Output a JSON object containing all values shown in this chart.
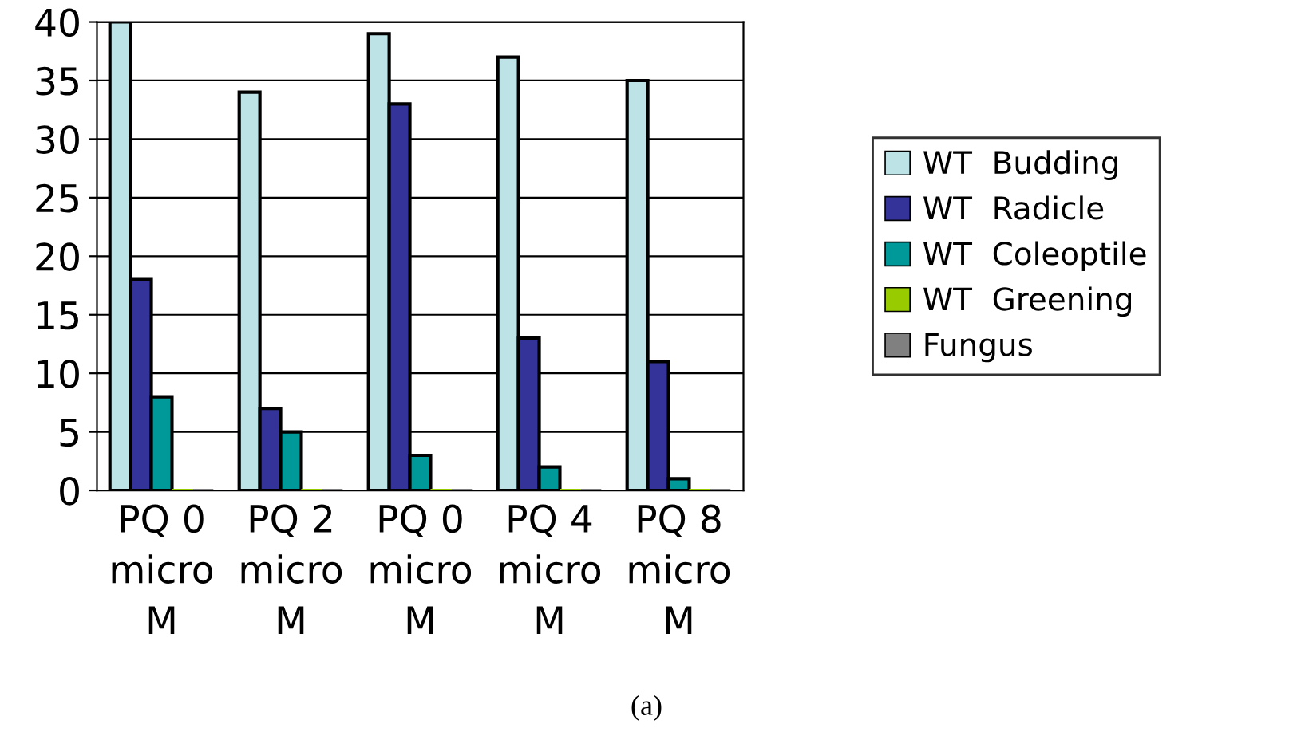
{
  "chart_data": {
    "type": "bar",
    "categories": [
      "PQ 0\nmicro\nM",
      "PQ 2\nmicro\nM",
      "PQ 0\nmicro\nM",
      "PQ 4\nmicro\nM",
      "PQ 8\nmicro\nM"
    ],
    "series": [
      {
        "name": "WT  Budding",
        "color": "#bde3e6",
        "values": [
          40,
          34,
          39,
          37,
          35
        ]
      },
      {
        "name": "WT  Radicle",
        "color": "#333399",
        "values": [
          18,
          7,
          33,
          13,
          11
        ]
      },
      {
        "name": "WT  Coleoptile",
        "color": "#009999",
        "values": [
          8,
          5,
          3,
          2,
          1
        ]
      },
      {
        "name": "WT  Greening",
        "color": "#99cc00",
        "values": [
          0,
          0,
          0,
          0,
          0
        ]
      },
      {
        "name": "Fungus",
        "color": "#808080",
        "values": [
          0,
          0,
          0,
          0,
          0
        ]
      }
    ],
    "ylim": [
      0,
      40
    ],
    "yticks": [
      0,
      5,
      10,
      15,
      20,
      25,
      30,
      35,
      40
    ],
    "grid": "y",
    "legend": "right",
    "annotations": [
      "(a)"
    ]
  }
}
